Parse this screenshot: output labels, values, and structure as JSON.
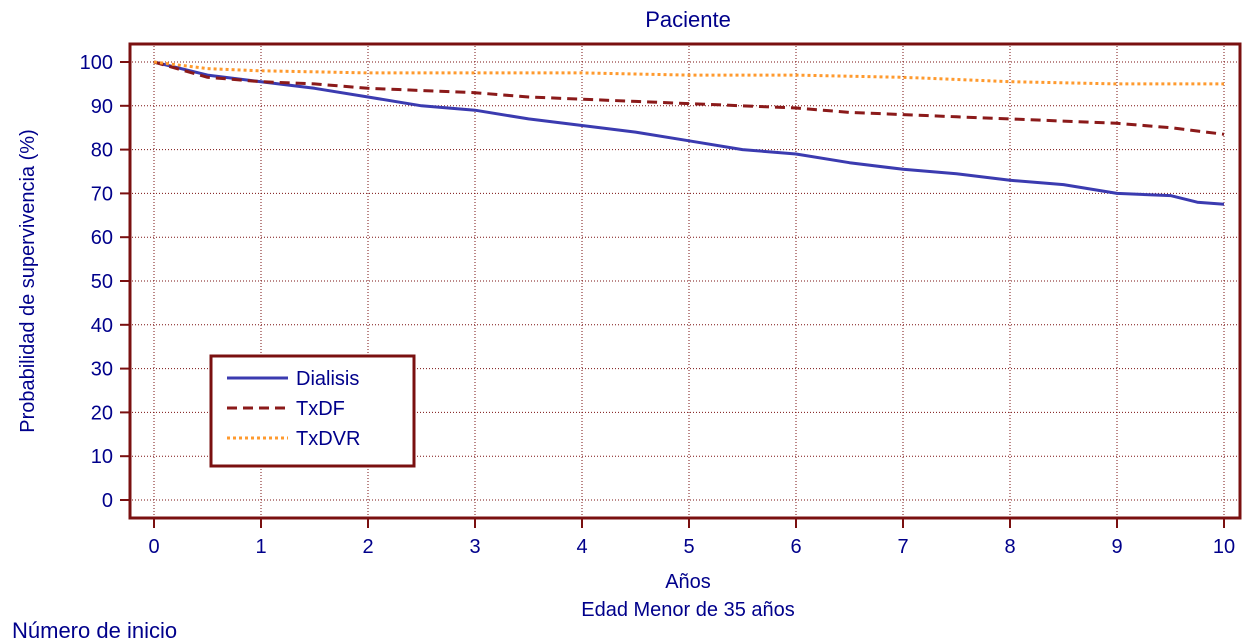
{
  "chart_data": {
    "type": "line",
    "title": "Paciente",
    "xlabel": "Años",
    "subtitle": "Edad Menor de 35 años",
    "ylabel": "Probabilidad de supervivencia (%)",
    "xlim": [
      0,
      10
    ],
    "ylim": [
      0,
      100
    ],
    "xticks": [
      "0",
      "1",
      "2",
      "3",
      "4",
      "5",
      "6",
      "7",
      "8",
      "9",
      "10"
    ],
    "yticks": [
      "0",
      "10",
      "20",
      "30",
      "40",
      "50",
      "60",
      "70",
      "80",
      "90",
      "100"
    ],
    "grid": true,
    "legend_position": "bottom-left",
    "series": [
      {
        "name": "Dialisis",
        "color": "#3b3bb0",
        "style": "solid",
        "x": [
          0,
          0.5,
          1,
          1.5,
          2,
          2.5,
          3,
          3.5,
          4,
          4.5,
          5,
          5.5,
          6,
          6.5,
          7,
          7.5,
          8,
          8.5,
          9,
          9.5,
          9.75,
          10
        ],
        "y": [
          100,
          97,
          95.5,
          94,
          92,
          90,
          89,
          87,
          85.5,
          84,
          82,
          80,
          79,
          77,
          75.5,
          74.5,
          73,
          72,
          70,
          69.5,
          68,
          67.5
        ]
      },
      {
        "name": "TxDF",
        "color": "#8b1a1a",
        "style": "dashed",
        "x": [
          0,
          0.5,
          1,
          1.5,
          2,
          2.5,
          3,
          3.5,
          4,
          4.5,
          5,
          5.5,
          6,
          6.5,
          7,
          7.5,
          8,
          8.5,
          9,
          9.5,
          10
        ],
        "y": [
          100,
          96.5,
          95.5,
          95,
          94,
          93.5,
          93,
          92,
          91.5,
          91,
          90.5,
          90,
          89.5,
          88.5,
          88,
          87.5,
          87,
          86.5,
          86,
          85,
          83.5
        ]
      },
      {
        "name": "TxDVR",
        "color": "#ff9a2e",
        "style": "dotted",
        "x": [
          0,
          0.5,
          1,
          2,
          3,
          4,
          5,
          6,
          7,
          7.5,
          8,
          9,
          10
        ],
        "y": [
          100,
          98.5,
          98,
          97.5,
          97.5,
          97.5,
          97,
          97,
          96.5,
          96,
          95.5,
          95,
          95
        ]
      }
    ]
  },
  "footer": {
    "cut_text": "Número de inicio"
  }
}
